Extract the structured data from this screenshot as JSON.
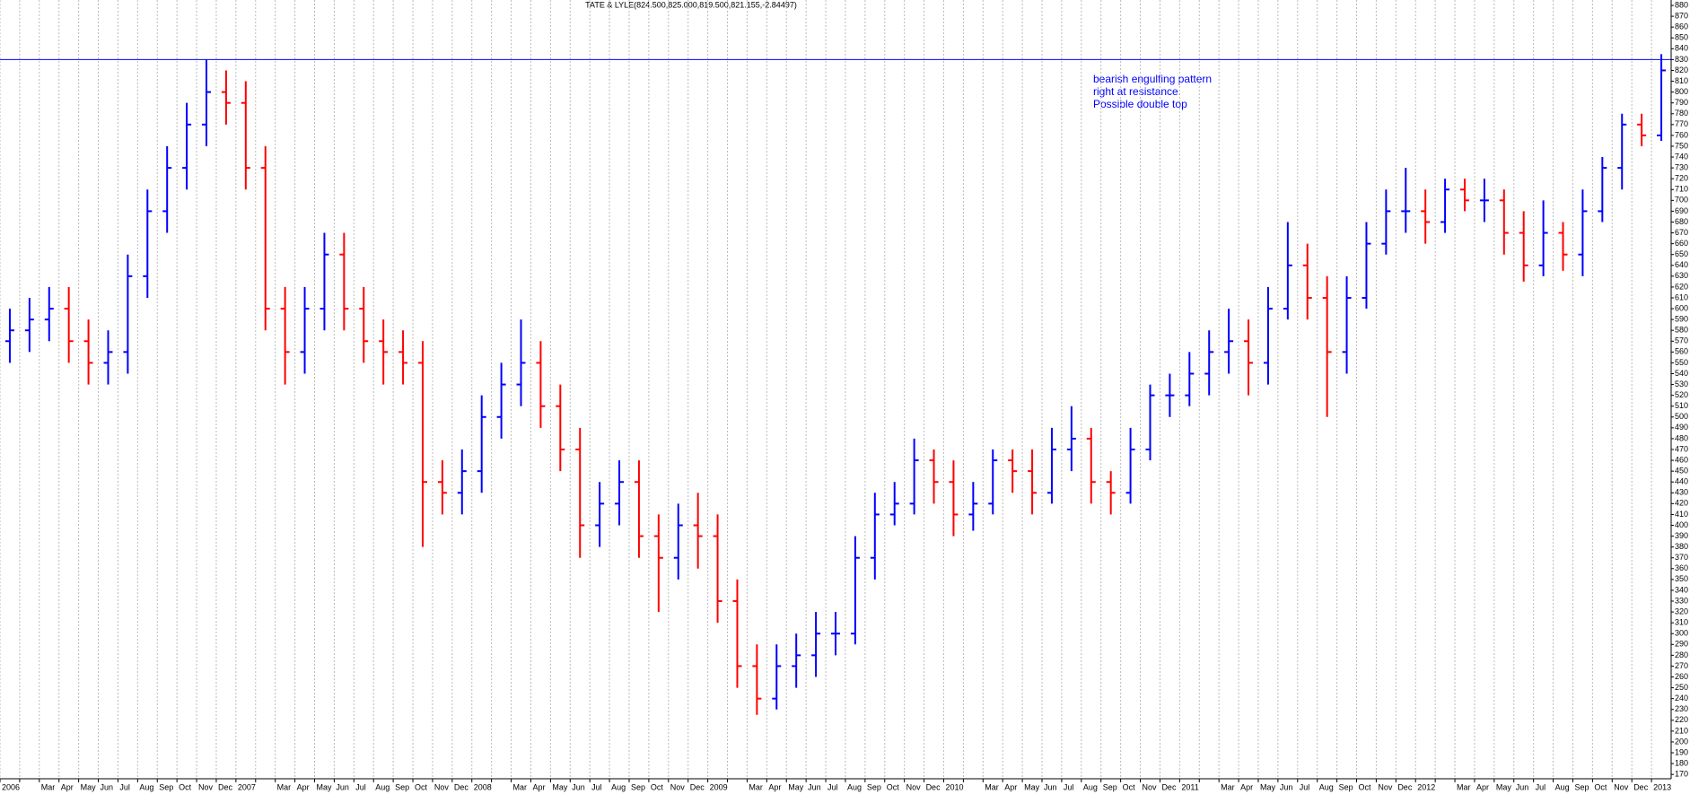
{
  "chart_data": {
    "type": "ohlc",
    "title": "TATE & LYLE(824.500,825.000,819.500,821.155,-2.84497)",
    "annotation": [
      "bearish engulfing pattern",
      "right at resistance.",
      "Possible double top"
    ],
    "hlines": [
      830
    ],
    "line_color": "#0000ff",
    "up_color": "#0000ff",
    "down_color": "#ff0000",
    "grid": true,
    "categories": [
      "2006",
      null,
      "Mar",
      "Apr",
      "May",
      "Jun",
      "Jul",
      "Aug",
      "Sep",
      "Oct",
      "Nov",
      "Dec",
      "2007",
      null,
      "Mar",
      "Apr",
      "May",
      "Jun",
      "Jul",
      "Aug",
      "Sep",
      "Oct",
      "Nov",
      "Dec",
      "2008",
      null,
      "Mar",
      "Apr",
      "May",
      "Jun",
      "Jul",
      "Aug",
      "Sep",
      "Oct",
      "Nov",
      "Dec",
      "2009",
      null,
      "Mar",
      "Apr",
      "May",
      "Jun",
      "Jul",
      "Aug",
      "Sep",
      "Oct",
      "Nov",
      "Dec",
      "2010",
      null,
      "Mar",
      "Apr",
      "May",
      "Jun",
      "Jul",
      "Aug",
      "Sep",
      "Oct",
      "Nov",
      "Dec",
      "2011",
      null,
      "Mar",
      "Apr",
      "May",
      "Jun",
      "Jul",
      "Aug",
      "Sep",
      "Oct",
      "Nov",
      "Dec",
      "2012",
      null,
      "Mar",
      "Apr",
      "May",
      "Jun",
      "Jul",
      "Aug",
      "Sep",
      "Oct",
      "Nov",
      "Dec",
      "2013"
    ],
    "open": [
      570,
      580,
      590,
      600,
      570,
      550,
      560,
      630,
      690,
      730,
      770,
      800,
      790,
      730,
      600,
      560,
      600,
      650,
      600,
      570,
      560,
      550,
      440,
      430,
      450,
      500,
      530,
      550,
      510,
      470,
      400,
      420,
      440,
      390,
      370,
      400,
      390,
      330,
      270,
      240,
      270,
      280,
      300,
      300,
      370,
      410,
      420,
      460,
      440,
      410,
      420,
      460,
      450,
      430,
      470,
      480,
      440,
      430,
      470,
      520,
      520,
      540,
      560,
      570,
      550,
      600,
      640,
      610,
      560,
      610,
      660,
      690,
      690,
      680,
      710,
      700,
      700,
      670,
      640,
      670,
      650,
      690,
      730,
      770,
      760
    ],
    "high": [
      600,
      610,
      620,
      620,
      590,
      580,
      650,
      710,
      750,
      790,
      830,
      820,
      810,
      750,
      620,
      620,
      670,
      670,
      620,
      590,
      580,
      570,
      460,
      470,
      520,
      550,
      590,
      570,
      530,
      490,
      440,
      460,
      460,
      410,
      420,
      430,
      410,
      350,
      290,
      290,
      300,
      320,
      320,
      390,
      430,
      440,
      480,
      470,
      460,
      440,
      470,
      470,
      470,
      490,
      510,
      490,
      450,
      490,
      530,
      540,
      560,
      580,
      600,
      590,
      620,
      680,
      660,
      630,
      630,
      680,
      710,
      730,
      710,
      720,
      720,
      720,
      710,
      690,
      700,
      680,
      710,
      740,
      780,
      780,
      835
    ],
    "low": [
      550,
      560,
      570,
      550,
      530,
      530,
      540,
      610,
      670,
      710,
      750,
      770,
      710,
      580,
      530,
      540,
      580,
      580,
      550,
      530,
      530,
      380,
      410,
      410,
      430,
      480,
      510,
      490,
      450,
      370,
      380,
      400,
      370,
      320,
      350,
      360,
      310,
      250,
      225,
      230,
      250,
      260,
      280,
      290,
      350,
      400,
      410,
      420,
      390,
      395,
      410,
      430,
      410,
      420,
      450,
      420,
      410,
      420,
      460,
      500,
      510,
      520,
      540,
      520,
      530,
      590,
      590,
      500,
      540,
      600,
      650,
      670,
      660,
      670,
      690,
      680,
      650,
      625,
      630,
      635,
      630,
      680,
      710,
      750,
      755
    ],
    "close": [
      580,
      590,
      600,
      570,
      550,
      560,
      630,
      690,
      730,
      770,
      800,
      790,
      730,
      600,
      560,
      600,
      650,
      600,
      570,
      560,
      550,
      440,
      430,
      450,
      500,
      530,
      550,
      510,
      470,
      400,
      420,
      440,
      390,
      370,
      400,
      390,
      330,
      270,
      240,
      270,
      280,
      300,
      300,
      370,
      410,
      420,
      460,
      440,
      410,
      420,
      460,
      450,
      430,
      470,
      480,
      440,
      430,
      470,
      520,
      520,
      540,
      560,
      570,
      550,
      600,
      640,
      610,
      560,
      610,
      660,
      690,
      690,
      680,
      710,
      700,
      700,
      670,
      640,
      670,
      650,
      690,
      730,
      770,
      760,
      820
    ],
    "ylim": [
      166,
      885
    ],
    "yticks": [
      170,
      180,
      190,
      200,
      210,
      220,
      230,
      240,
      250,
      260,
      270,
      280,
      290,
      300,
      310,
      320,
      330,
      340,
      350,
      360,
      370,
      380,
      390,
      400,
      410,
      420,
      430,
      440,
      450,
      460,
      470,
      480,
      490,
      500,
      510,
      520,
      530,
      540,
      550,
      560,
      570,
      580,
      590,
      600,
      610,
      620,
      630,
      640,
      650,
      660,
      670,
      680,
      690,
      700,
      710,
      720,
      730,
      740,
      750,
      760,
      770,
      780,
      790,
      800,
      810,
      820,
      830,
      840,
      850,
      860,
      870,
      880
    ]
  }
}
